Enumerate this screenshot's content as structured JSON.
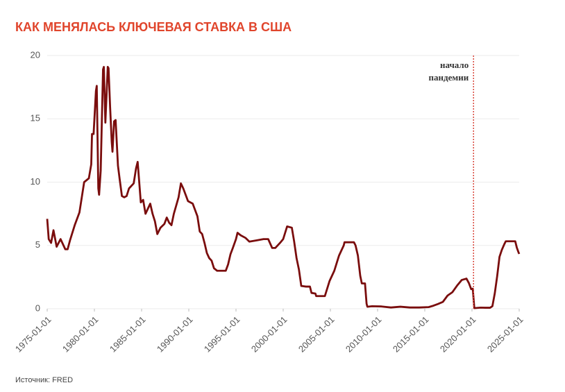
{
  "chart_data": {
    "type": "line",
    "title": "КАК МЕНЯЛАСЬ КЛЮЧЕВАЯ СТАВКА В США",
    "source": "Источник: FRED",
    "color": "#7a0d0d",
    "grid": true,
    "annotation": {
      "x": "2020-03-01",
      "lines": [
        "начало",
        "пандемии"
      ],
      "color": "#d9443a"
    },
    "x": [
      "1975-01-01",
      "1975-03-01",
      "1975-06-01",
      "1975-09-01",
      "1976-01-01",
      "1976-06-01",
      "1976-12-01",
      "1977-03-01",
      "1977-06-01",
      "1977-12-01",
      "1978-06-01",
      "1978-12-01",
      "1979-06-01",
      "1979-09-01",
      "1979-10-01",
      "1979-12-01",
      "1980-03-01",
      "1980-04-01",
      "1980-06-01",
      "1980-07-01",
      "1980-09-01",
      "1980-12-01",
      "1981-01-01",
      "1981-03-01",
      "1981-06-01",
      "1981-07-01",
      "1981-09-01",
      "1981-11-01",
      "1981-12-01",
      "1982-02-01",
      "1982-04-01",
      "1982-07-01",
      "1982-09-01",
      "1982-12-01",
      "1983-03-01",
      "1983-06-01",
      "1983-09-01",
      "1984-03-01",
      "1984-06-01",
      "1984-08-01",
      "1984-10-01",
      "1984-12-01",
      "1985-03-01",
      "1985-06-01",
      "1985-12-01",
      "1986-03-01",
      "1986-06-01",
      "1986-09-01",
      "1987-01-01",
      "1987-06-01",
      "1987-09-01",
      "1987-12-01",
      "1988-03-01",
      "1988-06-01",
      "1988-12-01",
      "1989-03-01",
      "1989-06-01",
      "1989-09-01",
      "1989-12-01",
      "1990-06-01",
      "1990-12-01",
      "1991-03-01",
      "1991-06-01",
      "1991-09-01",
      "1991-12-01",
      "1992-03-01",
      "1992-06-01",
      "1992-09-01",
      "1993-01-01",
      "1993-06-01",
      "1993-12-01",
      "1994-03-01",
      "1994-06-01",
      "1994-09-01",
      "1995-01-01",
      "1995-03-01",
      "1995-07-01",
      "1996-01-01",
      "1996-06-01",
      "1997-03-01",
      "1997-12-01",
      "1998-06-01",
      "1998-11-01",
      "1999-03-01",
      "1999-09-01",
      "2000-01-01",
      "2000-06-01",
      "2000-12-01",
      "2001-03-01",
      "2001-06-01",
      "2001-09-01",
      "2001-12-01",
      "2002-06-01",
      "2002-11-01",
      "2003-01-01",
      "2003-06-01",
      "2003-07-01",
      "2004-06-01",
      "2004-12-01",
      "2005-06-01",
      "2005-12-01",
      "2006-06-01",
      "2006-07-01",
      "2007-07-01",
      "2007-09-01",
      "2007-12-01",
      "2008-03-01",
      "2008-05-01",
      "2008-09-01",
      "2008-11-01",
      "2008-12-01",
      "2009-06-01",
      "2010-06-01",
      "2011-06-01",
      "2012-06-01",
      "2013-06-01",
      "2014-06-01",
      "2015-06-01",
      "2015-12-01",
      "2016-06-01",
      "2016-12-01",
      "2017-06-01",
      "2017-12-01",
      "2018-06-01",
      "2018-12-01",
      "2019-06-01",
      "2019-09-01",
      "2019-12-01",
      "2020-02-01",
      "2020-04-01",
      "2020-12-01",
      "2021-06-01",
      "2021-12-01",
      "2022-03-01",
      "2022-06-01",
      "2022-09-01",
      "2022-12-01",
      "2023-03-01",
      "2023-06-01",
      "2023-08-01",
      "2024-08-01",
      "2024-10-01",
      "2024-12-01",
      "2025-01-01"
    ],
    "values": [
      7.1,
      5.5,
      5.2,
      6.2,
      4.9,
      5.5,
      4.7,
      4.7,
      5.4,
      6.6,
      7.6,
      10.0,
      10.3,
      11.4,
      13.8,
      13.8,
      17.2,
      17.6,
      9.5,
      9.0,
      10.9,
      18.9,
      19.1,
      14.7,
      19.1,
      19.0,
      15.9,
      13.2,
      12.4,
      14.8,
      14.9,
      11.3,
      10.3,
      8.9,
      8.8,
      8.9,
      9.5,
      9.9,
      11.1,
      11.6,
      10.0,
      8.4,
      8.6,
      7.5,
      8.3,
      7.5,
      6.9,
      5.9,
      6.4,
      6.7,
      7.2,
      6.8,
      6.6,
      7.5,
      8.8,
      9.9,
      9.5,
      9.0,
      8.5,
      8.3,
      7.3,
      6.1,
      5.9,
      5.2,
      4.4,
      4.0,
      3.8,
      3.2,
      3.0,
      3.0,
      3.0,
      3.5,
      4.3,
      4.8,
      5.5,
      6.0,
      5.8,
      5.6,
      5.3,
      5.4,
      5.5,
      5.5,
      4.8,
      4.8,
      5.2,
      5.5,
      6.5,
      6.4,
      5.3,
      4.0,
      3.1,
      1.8,
      1.75,
      1.75,
      1.25,
      1.2,
      1.0,
      1.0,
      2.2,
      3.0,
      4.2,
      5.0,
      5.25,
      5.25,
      5.0,
      4.2,
      2.6,
      2.0,
      2.0,
      0.4,
      0.16,
      0.2,
      0.18,
      0.1,
      0.16,
      0.1,
      0.1,
      0.13,
      0.24,
      0.38,
      0.54,
      1.04,
      1.3,
      1.82,
      2.27,
      2.38,
      2.04,
      1.55,
      1.58,
      0.05,
      0.09,
      0.08,
      0.08,
      0.2,
      1.21,
      2.56,
      4.1,
      4.65,
      5.08,
      5.33,
      5.33,
      4.83,
      4.48,
      4.33
    ],
    "xlim": [
      "1975-01-01",
      "2025-01-01"
    ],
    "xticks": [
      "1975-01-01",
      "1980-01-01",
      "1985-01-01",
      "1990-01-01",
      "1995-01-01",
      "2000-01-01",
      "2005-01-01",
      "2010-01-01",
      "2015-01-01",
      "2020-01-01",
      "2025-01-01"
    ],
    "ylim": [
      0,
      20
    ],
    "yticks": [
      0,
      5,
      10,
      15,
      20
    ]
  }
}
